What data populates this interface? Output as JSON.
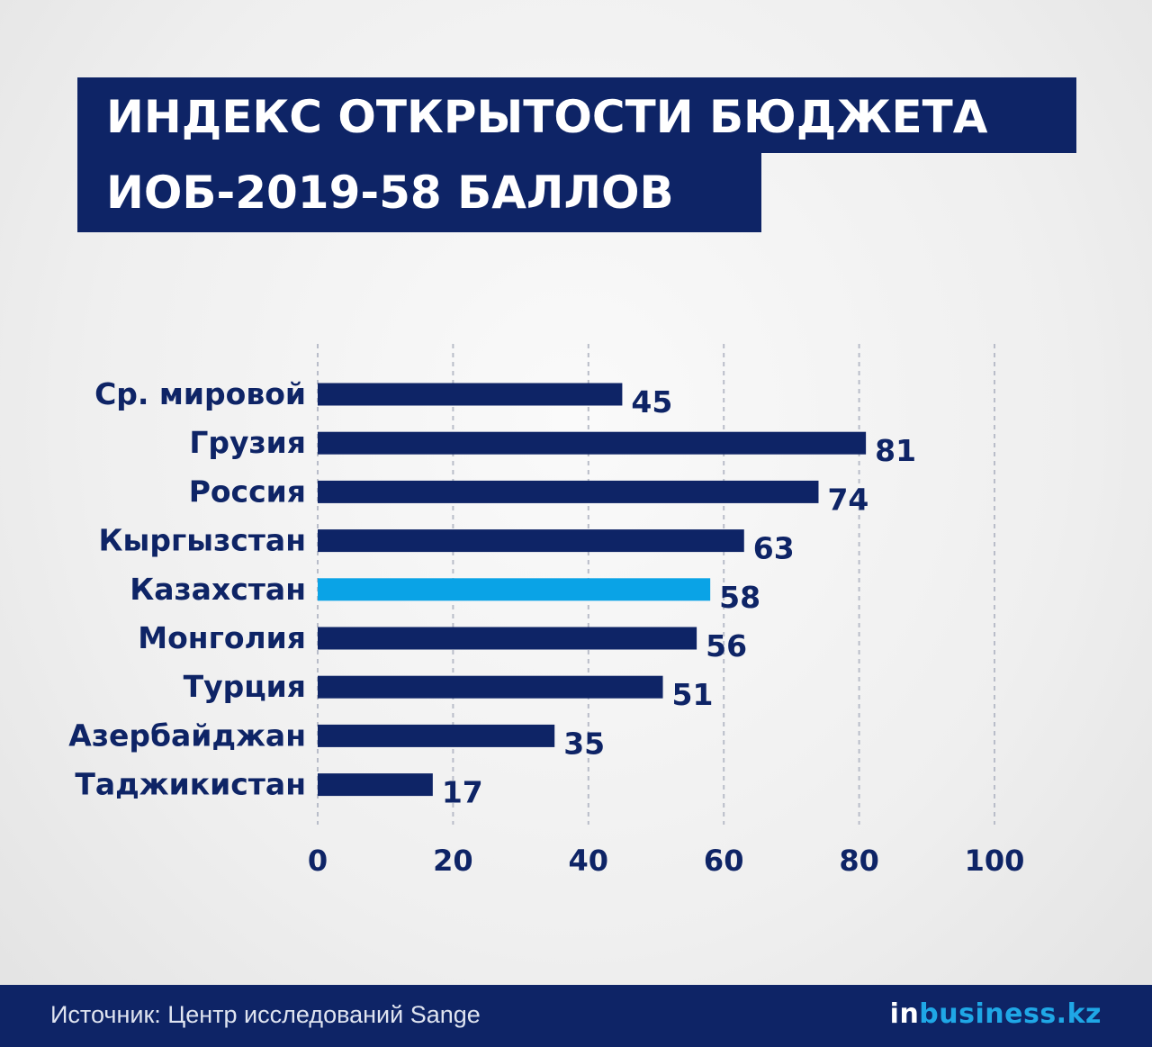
{
  "title": {
    "line1": "ИНДЕКС ОТКРЫТОСТИ БЮДЖЕТА",
    "line2": "ИОБ-2019-58 БАЛЛОВ"
  },
  "chart_data": {
    "type": "bar",
    "orientation": "horizontal",
    "categories": [
      "Ср. мировой",
      "Грузия",
      "Россия",
      "Кыргызстан",
      "Казахстан",
      "Монголия",
      "Турция",
      "Азербайджан",
      "Таджикистан"
    ],
    "values": [
      45,
      81,
      74,
      63,
      58,
      56,
      51,
      35,
      17
    ],
    "highlight": "Казахстан",
    "xlim": [
      0,
      100
    ],
    "xticks": [
      0,
      20,
      40,
      60,
      80,
      100
    ],
    "grid": "vertical-dashed",
    "colors": {
      "bar": "#0e2466",
      "highlight": "#0aa3e6",
      "text": "#0e2466",
      "grid": "#b9bdc9"
    }
  },
  "footer": {
    "source": "Источник: Центр исследований Sange",
    "brand_in": "in",
    "brand_rest": "business.kz"
  }
}
